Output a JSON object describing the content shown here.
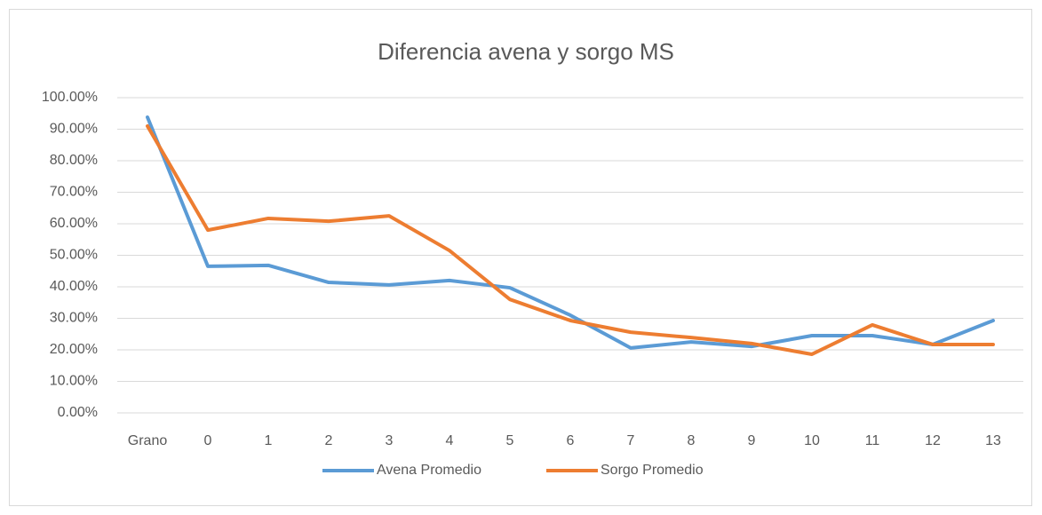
{
  "chart_data": {
    "type": "line",
    "title": "Diferencia avena y sorgo MS",
    "categories": [
      "Grano",
      "0",
      "1",
      "2",
      "3",
      "4",
      "5",
      "6",
      "7",
      "8",
      "9",
      "10",
      "11",
      "12",
      "13"
    ],
    "series": [
      {
        "name": "Avena Promedio",
        "color": "#5b9bd5",
        "values": [
          93.8,
          46.5,
          46.8,
          41.4,
          40.6,
          42,
          39.7,
          31,
          20.6,
          22.5,
          21.1,
          24.5,
          24.5,
          21.7,
          29.3
        ]
      },
      {
        "name": "Sorgo Promedio",
        "color": "#ed7d31",
        "values": [
          91,
          58,
          61.7,
          60.8,
          62.5,
          51.5,
          36,
          29.3,
          25.6,
          23.9,
          22,
          18.6,
          27.9,
          21.7,
          21.7
        ]
      }
    ],
    "ylim": [
      0,
      100
    ],
    "yticks": [
      {
        "value": 0,
        "label": "0.00%"
      },
      {
        "value": 10,
        "label": "10.00%"
      },
      {
        "value": 20,
        "label": "20.00%"
      },
      {
        "value": 30,
        "label": "30.00%"
      },
      {
        "value": 40,
        "label": "40.00%"
      },
      {
        "value": 50,
        "label": "50.00%"
      },
      {
        "value": 60,
        "label": "60.00%"
      },
      {
        "value": 70,
        "label": "70.00%"
      },
      {
        "value": 80,
        "label": "80.00%"
      },
      {
        "value": 90,
        "label": "90.00%"
      },
      {
        "value": 100,
        "label": "100.00%"
      }
    ],
    "grid": true,
    "legend": "bottom"
  }
}
